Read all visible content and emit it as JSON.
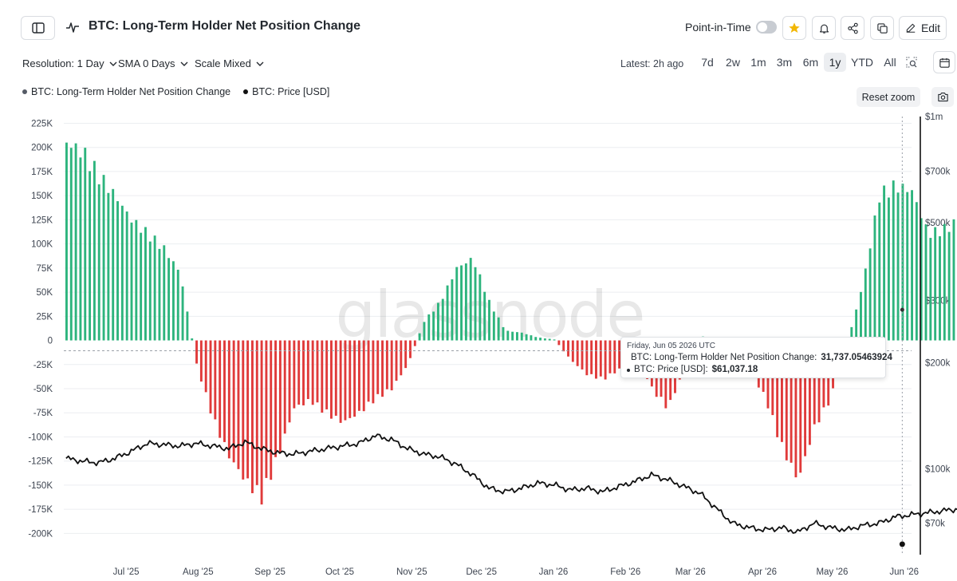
{
  "header": {
    "title": "BTC: Long-Term Holder Net Position Change",
    "point_in_time_label": "Point-in-Time",
    "point_in_time_enabled": false,
    "edit_label": "Edit",
    "icons": [
      "sidebar-toggle-icon",
      "metric-line-icon",
      "star-icon",
      "bell-icon",
      "share-icon",
      "copy-icon",
      "pencil-icon"
    ]
  },
  "controls": {
    "resolution_label": "Resolution: 1 Day",
    "sma_label": "SMA 0 Days",
    "scale_label": "Scale Mixed",
    "latest_label": "Latest: 2h ago",
    "ranges": [
      "7d",
      "2w",
      "1m",
      "3m",
      "6m",
      "1y",
      "YTD",
      "All"
    ],
    "active_range": "1y",
    "reset_zoom_label": "Reset zoom"
  },
  "legend": {
    "items": [
      {
        "label": "BTC: Long-Term Holder Net Position Change",
        "color": "#555b66"
      },
      {
        "label": "BTC: Price [USD]",
        "color": "#111111"
      }
    ]
  },
  "tooltip": {
    "date": "Friday, Jun 05 2026 UTC",
    "rows": [
      {
        "label": "BTC: Long-Term Holder Net Position Change:",
        "value": "31,737.05463924"
      },
      {
        "label": "BTC: Price [USD]:",
        "value": "$61,037.18"
      }
    ]
  },
  "watermark": "glassnode",
  "colors": {
    "positive": "#2db47d",
    "negative": "#e03a3a",
    "price_line": "#111111",
    "grid": "#eceef1"
  },
  "chart_data": {
    "type": "bar",
    "y_left": {
      "ticks": [
        225000,
        200000,
        175000,
        150000,
        125000,
        100000,
        75000,
        50000,
        25000,
        0,
        -25000,
        -50000,
        -75000,
        -100000,
        -125000,
        -150000,
        -175000,
        -200000
      ],
      "tick_labels": [
        "225K",
        "200K",
        "175K",
        "150K",
        "125K",
        "100K",
        "75K",
        "50K",
        "25K",
        "0",
        "-25K",
        "-50K",
        "-75K",
        "-100K",
        "-125K",
        "-150K",
        "-175K",
        "-200K"
      ],
      "range": [
        -222000,
        232000
      ]
    },
    "y_right": {
      "scale": "log",
      "ticks": [
        1000000,
        700000,
        500000,
        300000,
        200000,
        100000,
        70000
      ],
      "tick_labels": [
        "$1m",
        "$700k",
        "$500k",
        "$300k",
        "$200k",
        "$100k",
        "$70k"
      ],
      "range": [
        57000,
        1000000
      ]
    },
    "x_axis": {
      "range": [
        "2025-06-09",
        "2026-06-09"
      ],
      "ticks": [
        "2025-07-01",
        "2025-08-01",
        "2025-09-01",
        "2025-10-01",
        "2025-11-01",
        "2025-12-01",
        "2026-01-01",
        "2026-02-01",
        "2026-03-01",
        "2026-04-01",
        "2026-05-01",
        "2026-06-01"
      ],
      "tick_labels": [
        "Jul '25",
        "Aug '25",
        "Sep '25",
        "Oct '25",
        "Nov '25",
        "Dec '25",
        "Jan '26",
        "Feb '26",
        "Mar '26",
        "Apr '26",
        "May '26",
        "Jun '26"
      ]
    },
    "series": [
      {
        "name": "BTC: Long-Term Holder Net Position Change",
        "kind": "bar",
        "weekly_start": "2025-06-10",
        "weekly_values": [
          205000,
          195000,
          170000,
          150000,
          125000,
          110000,
          95000,
          70000,
          -25000,
          -80000,
          -120000,
          -145000,
          -162000,
          -120000,
          -70000,
          -62000,
          -75000,
          -85000,
          -75000,
          -60000,
          -50000,
          -25000,
          20000,
          40000,
          75000,
          85000,
          40000,
          10000,
          8000,
          3000,
          1000,
          -20000,
          -35000,
          -40000,
          -30000,
          -10000,
          -50000,
          -70000,
          -30000,
          5000,
          -3000,
          -10000,
          -30000,
          -60000,
          -110000,
          -145000,
          -90000,
          -60000,
          -5000,
          60000,
          150000,
          160000,
          155000,
          110000,
          115000,
          125000,
          130000,
          120000,
          130000,
          120000,
          95000,
          38000
        ]
      },
      {
        "name": "BTC: Price [USD]",
        "kind": "line",
        "weekly_start": "2025-06-10",
        "weekly_values": [
          107000,
          105000,
          104000,
          107000,
          112000,
          118000,
          117000,
          116000,
          118000,
          116000,
          114000,
          119000,
          114000,
          111000,
          110000,
          112000,
          114000,
          116000,
          118000,
          124000,
          121000,
          114000,
          110000,
          108000,
          103000,
          96000,
          88000,
          86000,
          88000,
          91000,
          90000,
          87000,
          88000,
          86000,
          89000,
          92000,
          96000,
          93000,
          89000,
          85000,
          77000,
          70000,
          68000,
          67000,
          68000,
          66000,
          70000,
          68000,
          67000,
          69000,
          70000,
          73000,
          74000,
          75000,
          76000,
          77000,
          75000,
          73000,
          72000,
          70000,
          61000,
          61037
        ]
      }
    ],
    "tooltip_point": {
      "date": "2026-06-05",
      "net_position_change": 31737.05463924,
      "price_usd": 61037.18
    },
    "grid": true,
    "legend_position": "top-left"
  }
}
